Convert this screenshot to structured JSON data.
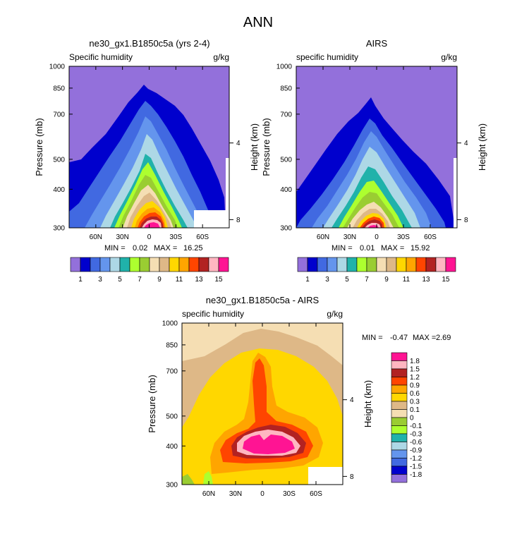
{
  "page": {
    "main_title": "ANN"
  },
  "panels": [
    {
      "title": "ne30_gx1.B1850c5a (yrs 2-4)",
      "left_label": "Specific humidity",
      "right_label": "g/kg",
      "min_label": "MIN =",
      "min_value": "0.02",
      "max_label": "MAX =",
      "max_value": "16.25"
    },
    {
      "title": "AIRS",
      "left_label": "specific humidity",
      "right_label": "g/kg",
      "min_label": "MIN =",
      "min_value": "0.01",
      "max_label": "MAX =",
      "max_value": "15.92"
    },
    {
      "title": "ne30_gx1.B1850c5a - AIRS",
      "left_label": "specific humidity",
      "right_label": "g/kg",
      "min_label": "MIN =",
      "min_value": "-0.47",
      "max_label": "MAX =",
      "max_value": "2.69"
    }
  ],
  "axis_labels": {
    "ylabel": "Pressure (mb)",
    "y2label": "Height (km)"
  },
  "chart_data": [
    {
      "type": "heatmap",
      "title": "ne30_gx1.B1850c5a (yrs 2-4)",
      "x_ticks": [
        "60N",
        "30N",
        "0",
        "30S",
        "60S"
      ],
      "x_tick_values": [
        60,
        30,
        0,
        -30,
        -60
      ],
      "xlim": [
        90,
        -90
      ],
      "y_ticks": [
        "300",
        "400",
        "500",
        "700",
        "850",
        "1000"
      ],
      "y_tick_values": [
        300,
        400,
        500,
        700,
        850,
        1000
      ],
      "ylim": [
        1000,
        300
      ],
      "height_ticks": [
        "8",
        "4"
      ],
      "height_tick_values": [
        8,
        4
      ],
      "min": 0.02,
      "max": 16.25,
      "colorbar_levels": [
        1,
        2,
        3,
        4,
        5,
        6,
        7,
        8,
        9,
        10,
        11,
        12,
        13,
        14,
        15
      ],
      "colorbar_labels": [
        "1",
        "3",
        "5",
        "7",
        "9",
        "11",
        "13",
        "15"
      ]
    },
    {
      "type": "heatmap",
      "title": "AIRS",
      "x_ticks": [
        "60N",
        "30N",
        "0",
        "30S",
        "60S"
      ],
      "x_tick_values": [
        60,
        30,
        0,
        -30,
        -60
      ],
      "xlim": [
        90,
        -90
      ],
      "y_ticks": [
        "300",
        "400",
        "500",
        "700",
        "850",
        "1000"
      ],
      "y_tick_values": [
        300,
        400,
        500,
        700,
        850,
        1000
      ],
      "ylim": [
        1000,
        300
      ],
      "height_ticks": [
        "8",
        "4"
      ],
      "height_tick_values": [
        8,
        4
      ],
      "min": 0.01,
      "max": 15.92,
      "colorbar_levels": [
        1,
        2,
        3,
        4,
        5,
        6,
        7,
        8,
        9,
        10,
        11,
        12,
        13,
        14,
        15
      ],
      "colorbar_labels": [
        "1",
        "3",
        "5",
        "7",
        "9",
        "11",
        "13",
        "15"
      ]
    },
    {
      "type": "heatmap",
      "title": "ne30_gx1.B1850c5a - AIRS",
      "x_ticks": [
        "60N",
        "30N",
        "0",
        "30S",
        "60S"
      ],
      "x_tick_values": [
        60,
        30,
        0,
        -30,
        -60
      ],
      "xlim": [
        90,
        -90
      ],
      "y_ticks": [
        "300",
        "400",
        "500",
        "700",
        "850",
        "1000"
      ],
      "y_tick_values": [
        300,
        400,
        500,
        700,
        850,
        1000
      ],
      "ylim": [
        1000,
        300
      ],
      "height_ticks": [
        "8",
        "4"
      ],
      "height_tick_values": [
        8,
        4
      ],
      "min": -0.47,
      "max": 2.69,
      "colorbar_levels": [
        1.8,
        1.5,
        1.2,
        0.9,
        0.6,
        0.3,
        0.1,
        0,
        -0.1,
        -0.3,
        -0.6,
        -0.9,
        -1.2,
        -1.5,
        -1.8
      ],
      "colorbar_labels": [
        "1.8",
        "1.5",
        "1.2",
        "0.9",
        "0.6",
        "0.3",
        "0.1",
        "0",
        "-0.1",
        "-0.3",
        "-0.6",
        "-0.9",
        "-1.2",
        "-1.5",
        "-1.8"
      ]
    }
  ],
  "colors": {
    "palette": [
      "#9370db",
      "#0000cd",
      "#4169e1",
      "#6495ed",
      "#add8e6",
      "#20b2aa",
      "#adff2f",
      "#9acd32",
      "#f5deb3",
      "#deb887",
      "#ffd700",
      "#ffa500",
      "#ff4500",
      "#b22222",
      "#ffb6c1",
      "#ff1493"
    ]
  }
}
